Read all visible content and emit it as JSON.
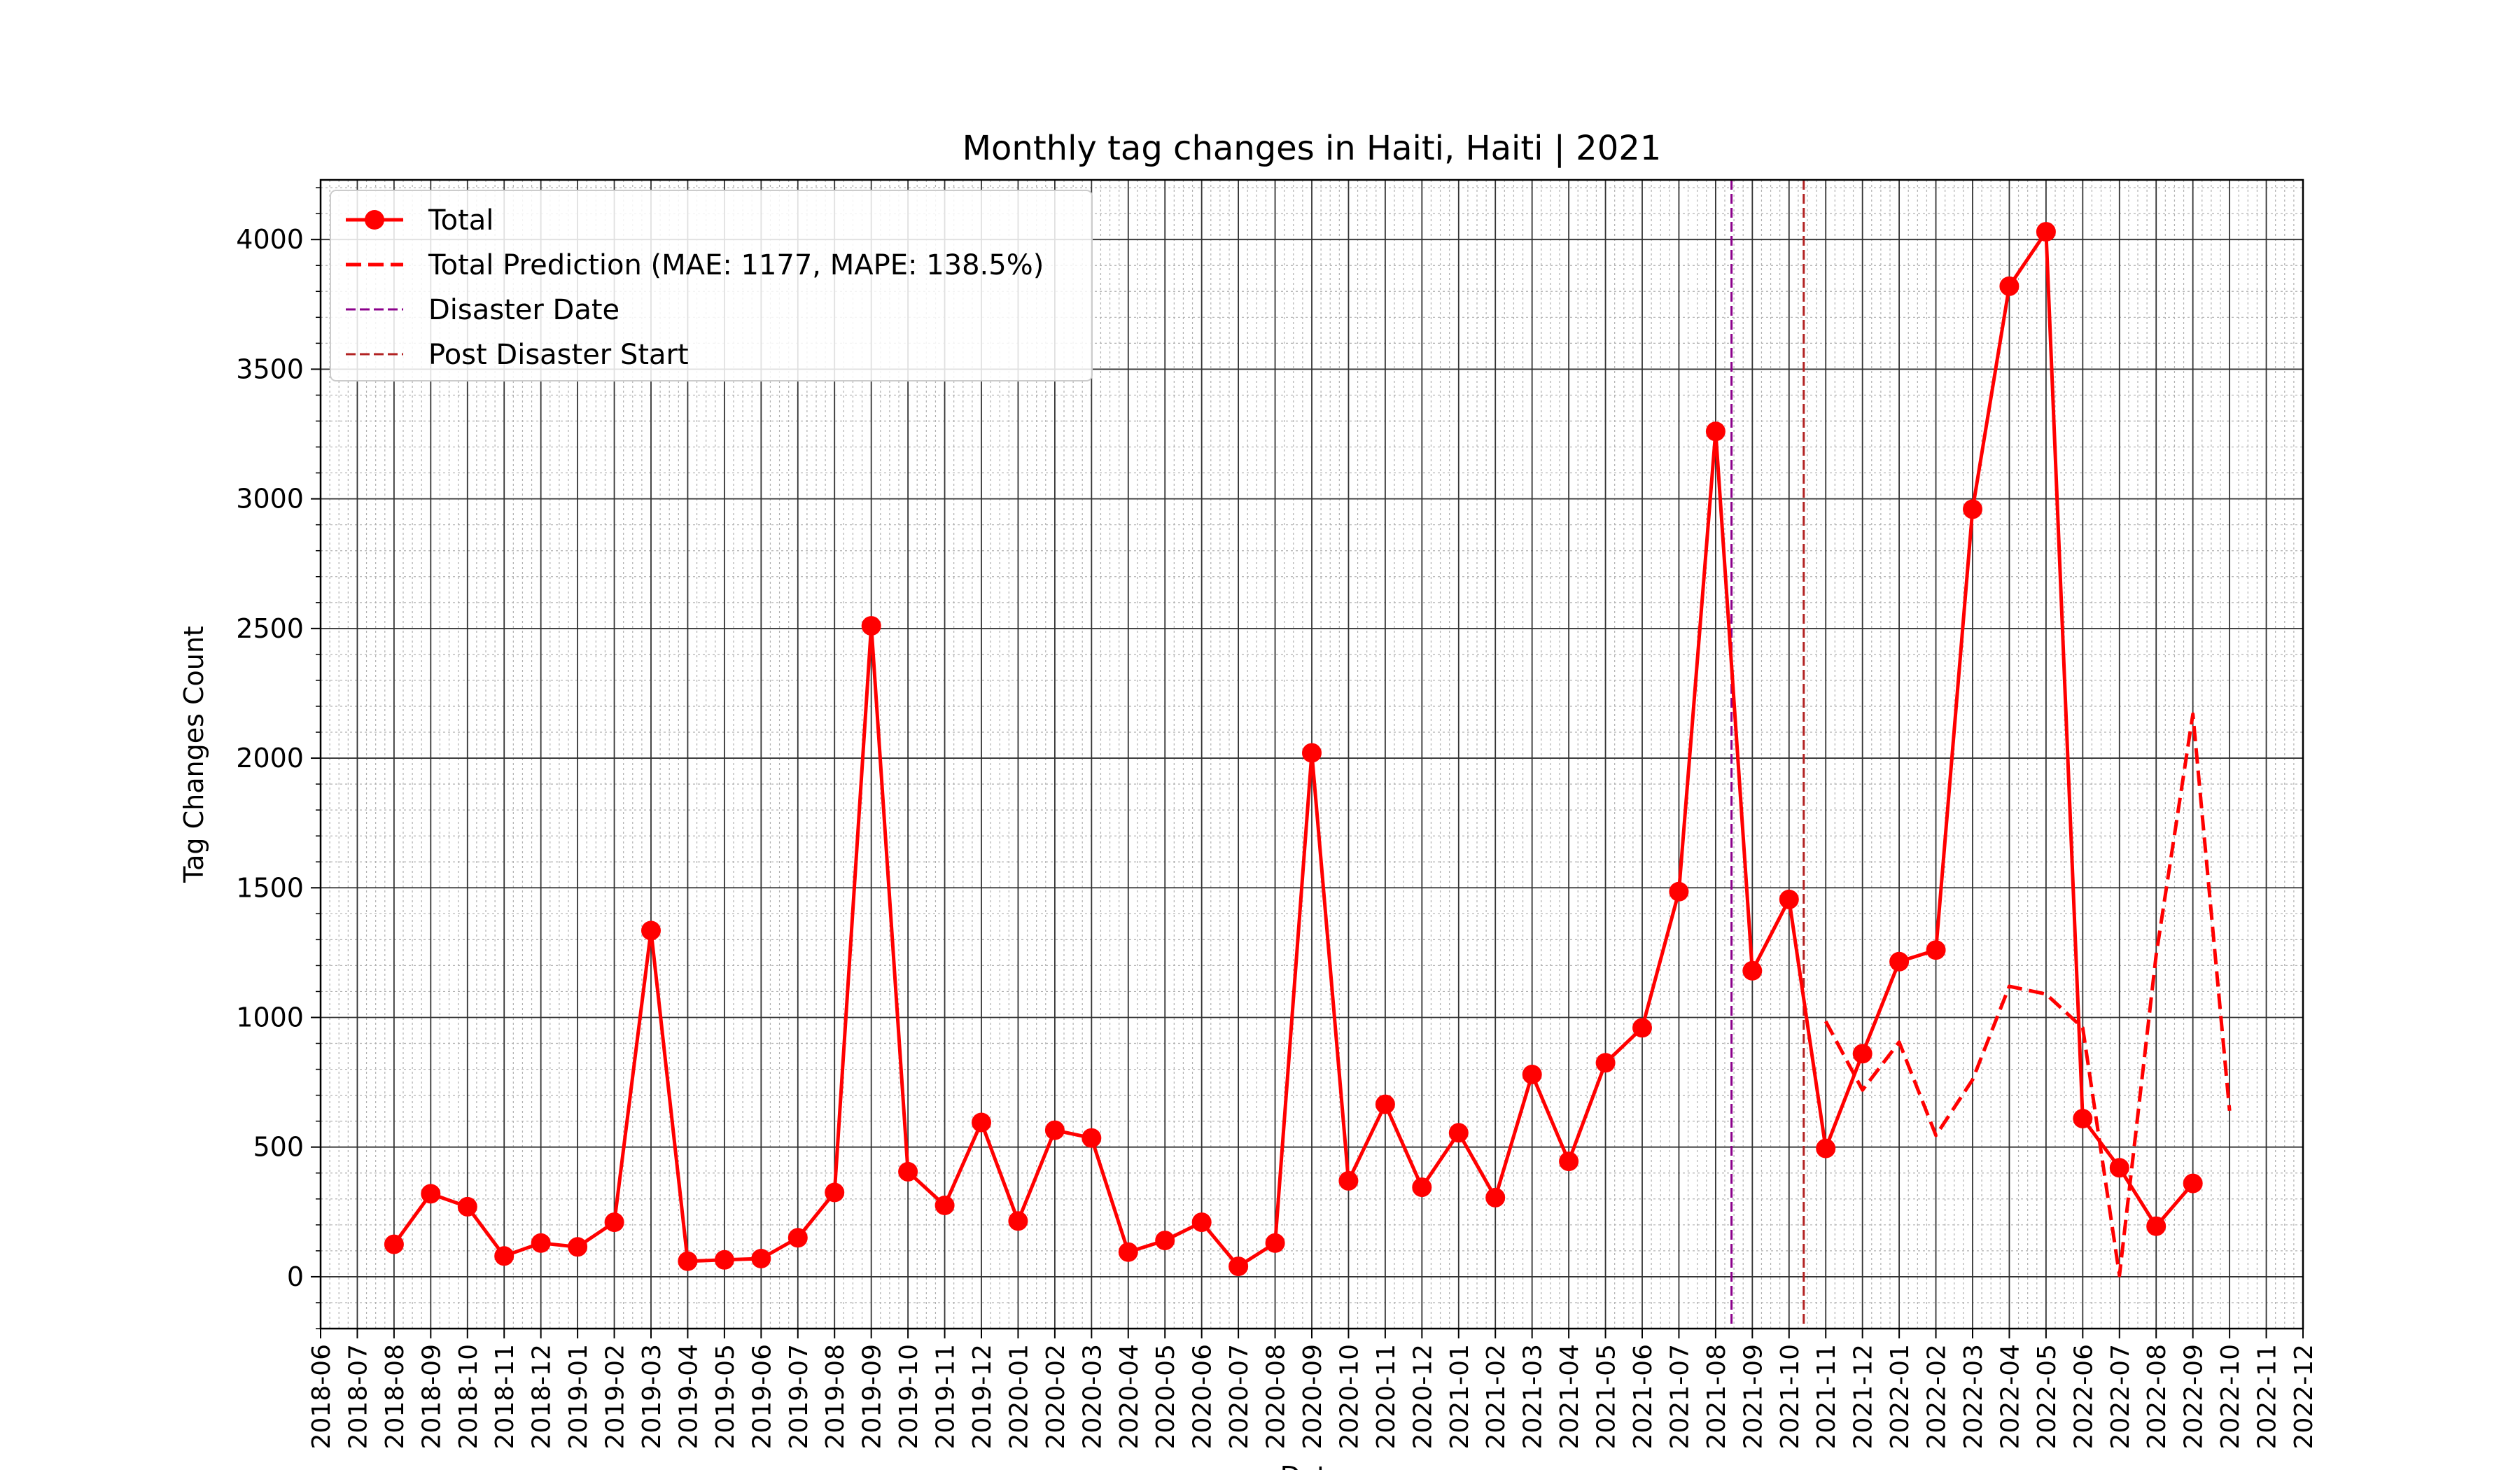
{
  "chart_data": {
    "type": "line",
    "title": "Monthly tag changes in Haiti, Haiti | 2021",
    "xlabel": "Date",
    "ylabel": "Tag Changes Count",
    "xlim": [
      "2018-06",
      "2022-12"
    ],
    "ylim": [
      -200,
      4230
    ],
    "yticks": [
      0,
      500,
      1000,
      1500,
      2000,
      2500,
      3000,
      3500,
      4000
    ],
    "xticks": [
      "2018-06",
      "2018-07",
      "2018-08",
      "2018-09",
      "2018-10",
      "2018-11",
      "2018-12",
      "2019-01",
      "2019-02",
      "2019-03",
      "2019-04",
      "2019-05",
      "2019-06",
      "2019-07",
      "2019-08",
      "2019-09",
      "2019-10",
      "2019-11",
      "2019-12",
      "2020-01",
      "2020-02",
      "2020-03",
      "2020-04",
      "2020-05",
      "2020-06",
      "2020-07",
      "2020-08",
      "2020-09",
      "2020-10",
      "2020-11",
      "2020-12",
      "2021-01",
      "2021-02",
      "2021-03",
      "2021-04",
      "2021-05",
      "2021-06",
      "2021-07",
      "2021-08",
      "2021-09",
      "2021-10",
      "2021-11",
      "2021-12",
      "2022-01",
      "2022-02",
      "2022-03",
      "2022-04",
      "2022-05",
      "2022-06",
      "2022-07",
      "2022-08",
      "2022-09",
      "2022-10",
      "2022-11",
      "2022-12"
    ],
    "grid": true,
    "legend_position": "top-left",
    "series": [
      {
        "name": "Total",
        "style": "solid-marker",
        "color": "#ff0000",
        "x": [
          "2018-08",
          "2018-09",
          "2018-10",
          "2018-11",
          "2018-12",
          "2019-01",
          "2019-02",
          "2019-03",
          "2019-04",
          "2019-05",
          "2019-06",
          "2019-07",
          "2019-08",
          "2019-09",
          "2019-10",
          "2019-11",
          "2019-12",
          "2020-01",
          "2020-02",
          "2020-03",
          "2020-04",
          "2020-05",
          "2020-06",
          "2020-07",
          "2020-08",
          "2020-09",
          "2020-10",
          "2020-11",
          "2020-12",
          "2021-01",
          "2021-02",
          "2021-03",
          "2021-04",
          "2021-05",
          "2021-06",
          "2021-07",
          "2021-08",
          "2021-09",
          "2021-10",
          "2021-11",
          "2021-12",
          "2022-01",
          "2022-02",
          "2022-03",
          "2022-04",
          "2022-05",
          "2022-06",
          "2022-07",
          "2022-08",
          "2022-09"
        ],
        "values": [
          125,
          320,
          270,
          80,
          130,
          115,
          210,
          1335,
          60,
          65,
          70,
          150,
          325,
          2510,
          405,
          275,
          595,
          215,
          565,
          535,
          95,
          140,
          210,
          40,
          130,
          2020,
          370,
          665,
          345,
          555,
          305,
          780,
          445,
          825,
          960,
          1485,
          3260,
          1180,
          1455,
          495,
          860,
          1215,
          1260,
          2960,
          3820,
          4030,
          610,
          420,
          195,
          360
        ]
      },
      {
        "name": "Total Prediction (MAE: 1177, MAPE: 138.5%)",
        "style": "dashed",
        "color": "#ff0000",
        "x": [
          "2021-11",
          "2021-12",
          "2022-01",
          "2022-02",
          "2022-03",
          "2022-04",
          "2022-05",
          "2022-06",
          "2022-07",
          "2022-08",
          "2022-09",
          "2022-10"
        ],
        "values": [
          985,
          720,
          905,
          545,
          760,
          1120,
          1090,
          960,
          5,
          1240,
          2170,
          640
        ]
      }
    ],
    "vlines": [
      {
        "name": "Disaster Date",
        "x": "2021-08-14",
        "color": "#8b008b"
      },
      {
        "name": "Post Disaster Start",
        "x": "2021-10-13",
        "color": "#b22222"
      }
    ]
  }
}
